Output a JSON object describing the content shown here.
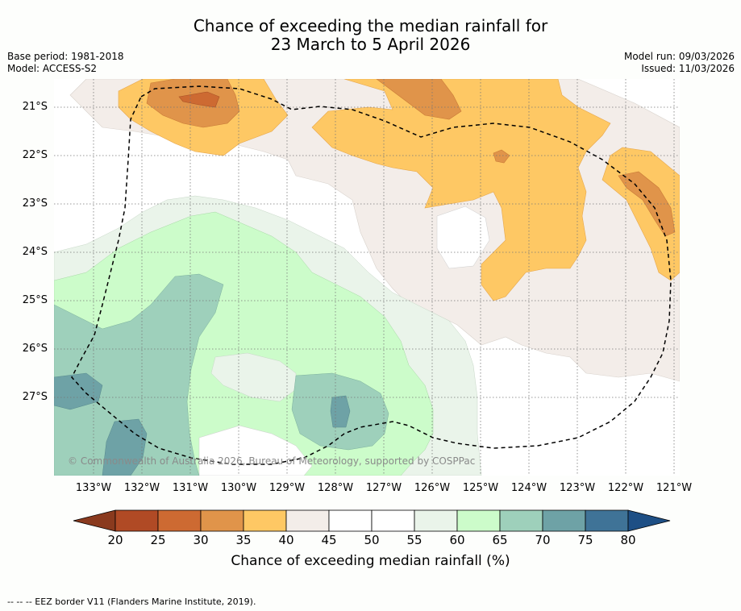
{
  "header": {
    "title_line1": "Chance of exceeding the median rainfall for",
    "title_line2": "23 March to 5 April 2026",
    "base_period": "Base period: 1981-2018",
    "model": "Model: ACCESS-S2",
    "model_run": "Model run: 09/03/2026",
    "issued": "Issued: 11/03/2026"
  },
  "map": {
    "lat_labels": [
      "21°S",
      "22°S",
      "23°S",
      "24°S",
      "25°S",
      "26°S",
      "27°S"
    ],
    "lon_labels": [
      "133°W",
      "132°W",
      "131°W",
      "130°W",
      "129°W",
      "128°W",
      "127°W",
      "126°W",
      "125°W",
      "124°W",
      "123°W",
      "122°W",
      "121°W"
    ],
    "copyright": "© Commonwealth of Australia 2026, Bureau of Meteorology, supported by COSPPac"
  },
  "colorbar": {
    "ticks": [
      "20",
      "25",
      "30",
      "35",
      "40",
      "45",
      "50",
      "55",
      "60",
      "65",
      "70",
      "75",
      "80"
    ],
    "colors": [
      "#8a3a1e",
      "#b04a25",
      "#cd6a32",
      "#e0944a",
      "#fec864",
      "#f3ede9",
      "#ffffff",
      "#ffffff",
      "#eaf4ea",
      "#ccfcca",
      "#9ed0bb",
      "#6ea2a6",
      "#3f7397",
      "#1e4f85"
    ],
    "label": "Chance of exceeding median rainfall (%)"
  },
  "legend": {
    "footnote": "--  --  -- EEZ border V11 (Flanders Marine Institute, 2019)."
  }
}
